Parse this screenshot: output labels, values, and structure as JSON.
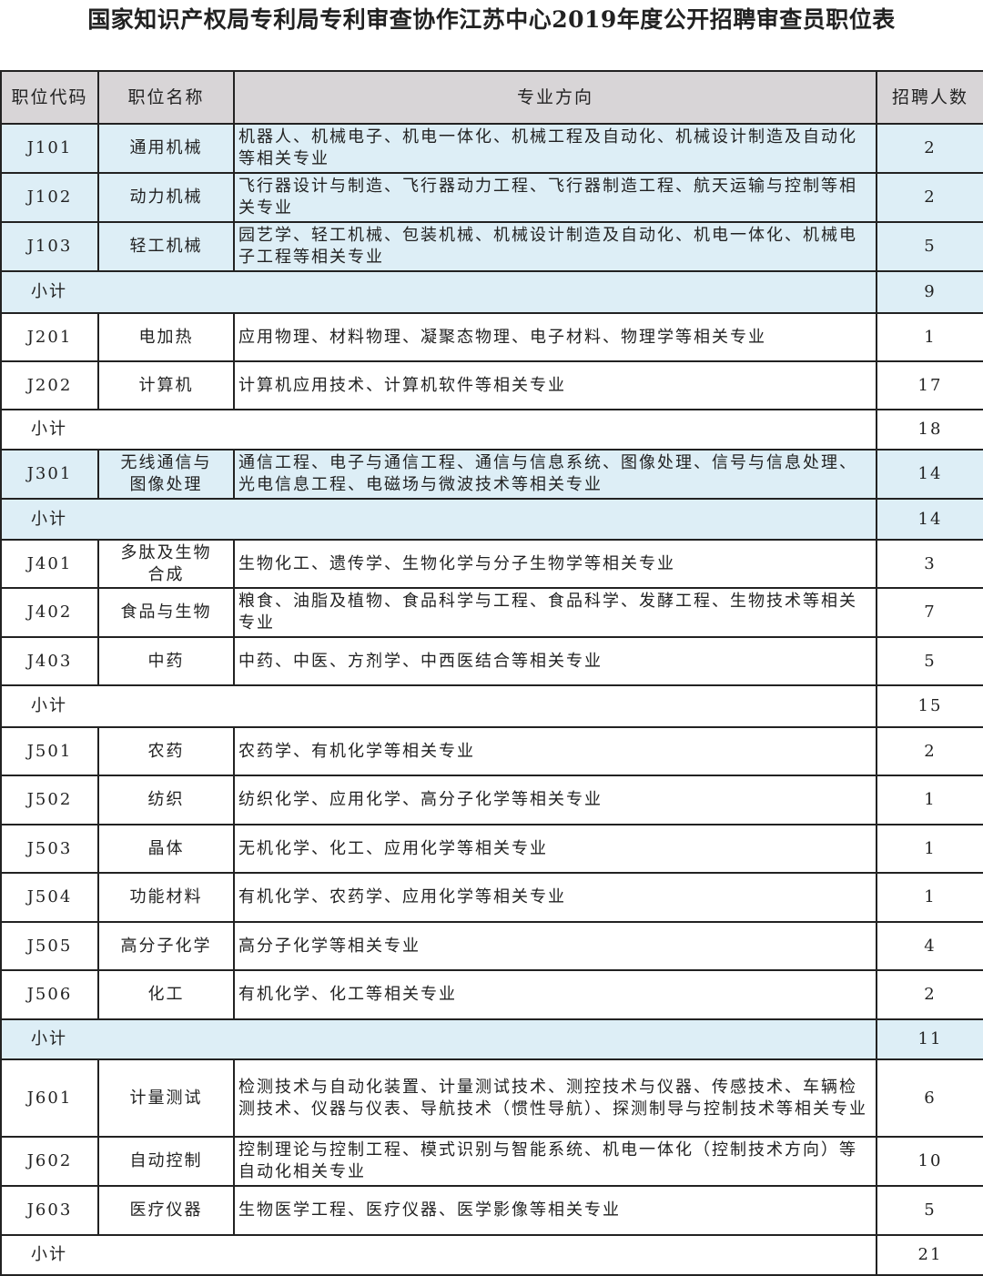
{
  "title": "国家知识产权局专利局专利审查协作江苏中心2019年度公开招聘审查员职位表",
  "colors": {
    "header_bg": "#d8d5d7",
    "highlight_bg": "#ddeef6",
    "border": "#222222"
  },
  "columns": [
    "职位代码",
    "职位名称",
    "专业方向",
    "招聘人数"
  ],
  "rows": [
    {
      "type": "pos",
      "code": "J101",
      "name": "通用机械",
      "major": "机器人、机械电子、机电一体化、机械工程及自动化、机械设计制造及自动化等相关专业",
      "count": "2",
      "highlight": true
    },
    {
      "type": "pos",
      "code": "J102",
      "name": "动力机械",
      "major": "飞行器设计与制造、飞行器动力工程、飞行器制造工程、航天运输与控制等相关专业",
      "count": "2",
      "highlight": true
    },
    {
      "type": "pos",
      "code": "J103",
      "name": "轻工机械",
      "major": "园艺学、轻工机械、包装机械、机械设计制造及自动化、机电一体化、机械电子工程等相关专业",
      "count": "5",
      "highlight": true
    },
    {
      "type": "sub",
      "label": "小计",
      "count": "9",
      "highlight": true
    },
    {
      "type": "pos",
      "code": "J201",
      "name": "电加热",
      "major": "应用物理、材料物理、凝聚态物理、电子材料、物理学等相关专业",
      "count": "1",
      "highlight": false
    },
    {
      "type": "pos",
      "code": "J202",
      "name": "计算机",
      "major": "计算机应用技术、计算机软件等相关专业",
      "count": "17",
      "highlight": false
    },
    {
      "type": "sub",
      "label": "小计",
      "count": "18",
      "highlight": false
    },
    {
      "type": "pos",
      "code": "J301",
      "name": "无线通信与图像处理",
      "major": "通信工程、电子与通信工程、通信与信息系统、图像处理、信号与信息处理、光电信息工程、电磁场与微波技术等相关专业",
      "count": "14",
      "highlight": true
    },
    {
      "type": "sub",
      "label": "小计",
      "count": "14",
      "highlight": true
    },
    {
      "type": "pos",
      "code": "J401",
      "name": "多肽及生物合成",
      "major": "生物化工、遗传学、生物化学与分子生物学等相关专业",
      "count": "3",
      "highlight": false
    },
    {
      "type": "pos",
      "code": "J402",
      "name": "食品与生物",
      "major": "粮食、油脂及植物、食品科学与工程、食品科学、发酵工程、生物技术等相关专业",
      "count": "7",
      "highlight": false
    },
    {
      "type": "pos",
      "code": "J403",
      "name": "中药",
      "major": "中药、中医、方剂学、中西医结合等相关专业",
      "count": "5",
      "highlight": false
    },
    {
      "type": "sub",
      "label": "小计",
      "count": "15",
      "highlight": false
    },
    {
      "type": "pos",
      "code": "J501",
      "name": "农药",
      "major": "农药学、有机化学等相关专业",
      "count": "2",
      "highlight": false
    },
    {
      "type": "pos",
      "code": "J502",
      "name": "纺织",
      "major": "纺织化学、应用化学、高分子化学等相关专业",
      "count": "1",
      "highlight": false
    },
    {
      "type": "pos",
      "code": "J503",
      "name": "晶体",
      "major": "无机化学、化工、应用化学等相关专业",
      "count": "1",
      "highlight": false
    },
    {
      "type": "pos",
      "code": "J504",
      "name": "功能材料",
      "major": "有机化学、农药学、应用化学等相关专业",
      "count": "1",
      "highlight": false
    },
    {
      "type": "pos",
      "code": "J505",
      "name": "高分子化学",
      "major": "高分子化学等相关专业",
      "count": "4",
      "highlight": false
    },
    {
      "type": "pos",
      "code": "J506",
      "name": "化工",
      "major": "有机化学、化工等相关专业",
      "count": "2",
      "highlight": false
    },
    {
      "type": "sub",
      "label": "小计",
      "count": "11",
      "highlight": true
    },
    {
      "type": "pos",
      "code": "J601",
      "name": "计量测试",
      "major": "检测技术与自动化装置、计量测试技术、测控技术与仪器、传感技术、车辆检测技术、仪器与仪表、导航技术（惯性导航）、探测制导与控制技术等相关专业",
      "count": "6",
      "highlight": false
    },
    {
      "type": "pos",
      "code": "J602",
      "name": "自动控制",
      "major": "控制理论与控制工程、模式识别与智能系统、机电一体化（控制技术方向）等自动化相关专业",
      "count": "10",
      "highlight": false
    },
    {
      "type": "pos",
      "code": "J603",
      "name": "医疗仪器",
      "major": "生物医学工程、医疗仪器、医学影像等相关专业",
      "count": "5",
      "highlight": false
    },
    {
      "type": "sub",
      "label": "小计",
      "count": "21",
      "highlight": false
    }
  ]
}
